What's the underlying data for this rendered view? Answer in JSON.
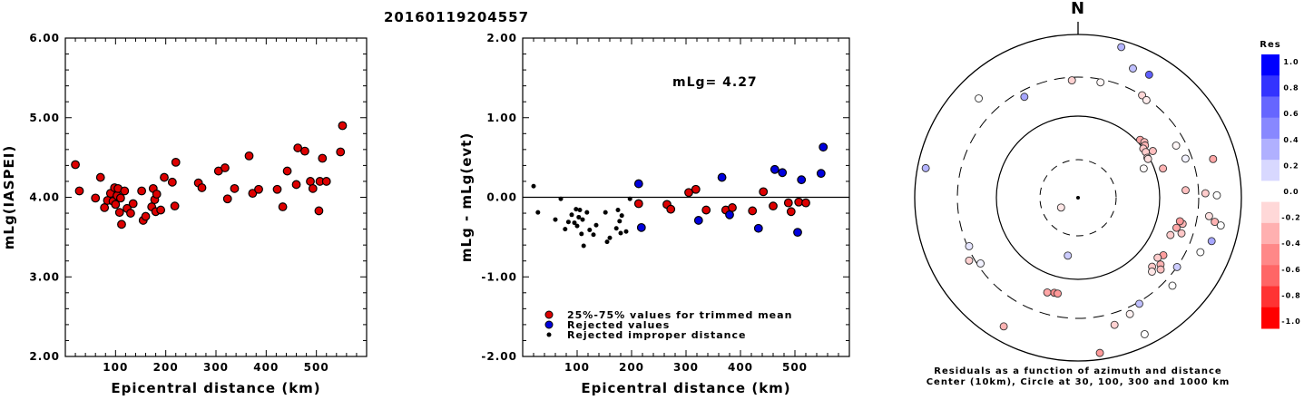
{
  "page_title": "20160119204557",
  "chart_data": [
    {
      "type": "scatter",
      "xlabel": "Epicentral distance (km)",
      "ylabel": "mLg(IASPEI)",
      "xlim": [
        0,
        600
      ],
      "ylim": [
        2.0,
        6.0
      ],
      "x_ticks": [
        "100",
        "200",
        "300",
        "400",
        "500"
      ],
      "y_ticks": [
        "2.00",
        "3.00",
        "4.00",
        "5.00",
        "6.00"
      ],
      "series": [
        {
          "color": "#dd0000",
          "points": [
            [
              20,
              4.41
            ],
            [
              28,
              4.08
            ],
            [
              60,
              3.99
            ],
            [
              70,
              4.25
            ],
            [
              78,
              3.87
            ],
            [
              84,
              3.96
            ],
            [
              90,
              4.05
            ],
            [
              95,
              3.95
            ],
            [
              98,
              4.12
            ],
            [
              100,
              3.91
            ],
            [
              103,
              4.02
            ],
            [
              105,
              4.11
            ],
            [
              108,
              3.81
            ],
            [
              110,
              3.99
            ],
            [
              112,
              3.66
            ],
            [
              118,
              4.08
            ],
            [
              123,
              3.86
            ],
            [
              130,
              3.8
            ],
            [
              135,
              3.92
            ],
            [
              152,
              4.08
            ],
            [
              155,
              3.71
            ],
            [
              160,
              3.76
            ],
            [
              172,
              3.88
            ],
            [
              175,
              4.11
            ],
            [
              178,
              3.97
            ],
            [
              180,
              3.82
            ],
            [
              182,
              4.04
            ],
            [
              190,
              3.84
            ],
            [
              197,
              4.25
            ],
            [
              213,
              4.19
            ],
            [
              218,
              3.89
            ],
            [
              220,
              4.44
            ],
            [
              265,
              4.18
            ],
            [
              272,
              4.12
            ],
            [
              305,
              4.33
            ],
            [
              318,
              4.37
            ],
            [
              323,
              3.98
            ],
            [
              337,
              4.11
            ],
            [
              366,
              4.52
            ],
            [
              373,
              4.05
            ],
            [
              385,
              4.1
            ],
            [
              422,
              4.1
            ],
            [
              433,
              3.88
            ],
            [
              442,
              4.33
            ],
            [
              460,
              4.16
            ],
            [
              463,
              4.62
            ],
            [
              477,
              4.58
            ],
            [
              488,
              4.2
            ],
            [
              493,
              4.11
            ],
            [
              505,
              3.83
            ],
            [
              507,
              4.2
            ],
            [
              512,
              4.49
            ],
            [
              520,
              4.2
            ],
            [
              548,
              4.57
            ],
            [
              552,
              4.9
            ]
          ]
        }
      ]
    },
    {
      "type": "scatter",
      "xlabel": "Epicentral distance (km)",
      "ylabel": "mLg - mLg(evt)",
      "xlim": [
        0,
        600
      ],
      "ylim": [
        -2.0,
        2.0
      ],
      "x_ticks": [
        "100",
        "200",
        "300",
        "400",
        "500"
      ],
      "y_ticks": [
        "-2.00",
        "-1.00",
        "0.00",
        "1.00",
        "2.00"
      ],
      "reference_line": 0.0,
      "annotation": "mLg= 4.27",
      "legend_position": "bottom-left",
      "series": [
        {
          "name": "25%-75% values for trimmed mean",
          "color": "#dd0000",
          "marker": "circle",
          "points": [
            [
              213,
              -0.08
            ],
            [
              265,
              -0.09
            ],
            [
              272,
              -0.15
            ],
            [
              305,
              0.06
            ],
            [
              318,
              0.1
            ],
            [
              337,
              -0.16
            ],
            [
              373,
              -0.16
            ],
            [
              385,
              -0.13
            ],
            [
              422,
              -0.17
            ],
            [
              442,
              0.07
            ],
            [
              460,
              -0.11
            ],
            [
              488,
              -0.07
            ],
            [
              493,
              -0.18
            ],
            [
              507,
              -0.06
            ],
            [
              520,
              -0.07
            ]
          ]
        },
        {
          "name": "Rejected values",
          "color": "#0000dd",
          "marker": "circle",
          "points": [
            [
              213,
              0.17
            ],
            [
              218,
              -0.38
            ],
            [
              323,
              -0.29
            ],
            [
              366,
              0.25
            ],
            [
              380,
              -0.22
            ],
            [
              433,
              -0.39
            ],
            [
              463,
              0.35
            ],
            [
              477,
              0.31
            ],
            [
              505,
              -0.44
            ],
            [
              512,
              0.22
            ],
            [
              548,
              0.3
            ],
            [
              552,
              0.63
            ]
          ]
        },
        {
          "name": "Rejected improper distance",
          "color": "#000000",
          "marker": "dot",
          "points": [
            [
              20,
              0.14
            ],
            [
              28,
              -0.19
            ],
            [
              60,
              -0.28
            ],
            [
              70,
              -0.02
            ],
            [
              78,
              -0.4
            ],
            [
              84,
              -0.31
            ],
            [
              90,
              -0.22
            ],
            [
              95,
              -0.32
            ],
            [
              98,
              -0.15
            ],
            [
              100,
              -0.36
            ],
            [
              103,
              -0.25
            ],
            [
              105,
              -0.16
            ],
            [
              108,
              -0.46
            ],
            [
              110,
              -0.28
            ],
            [
              112,
              -0.61
            ],
            [
              118,
              -0.19
            ],
            [
              123,
              -0.41
            ],
            [
              130,
              -0.47
            ],
            [
              135,
              -0.35
            ],
            [
              152,
              -0.19
            ],
            [
              155,
              -0.56
            ],
            [
              160,
              -0.51
            ],
            [
              172,
              -0.39
            ],
            [
              175,
              -0.16
            ],
            [
              178,
              -0.3
            ],
            [
              180,
              -0.45
            ],
            [
              182,
              -0.23
            ],
            [
              190,
              -0.43
            ],
            [
              197,
              -0.02
            ]
          ]
        }
      ]
    },
    {
      "type": "polar-scatter",
      "north_label": "N",
      "caption_line1": "Residuals as a function of azimuth and distance",
      "caption_line2": "Center (10km), Circle at 30, 100, 300 and 1000 km",
      "rings_km": [
        30,
        100,
        300,
        1000
      ],
      "colorbar": {
        "title": "Res",
        "ticks": [
          "1.0",
          "0.8",
          "0.6",
          "0.4",
          "0.2",
          "0.0",
          "-0.2",
          "-0.4",
          "-0.6",
          "-0.8",
          "-1.0"
        ],
        "colors": [
          "#0000ff",
          "#3333ff",
          "#6666ff",
          "#8888ff",
          "#b0b0ff",
          "#d8d8ff",
          "#ffffff",
          "#ffd8d8",
          "#ffb0b0",
          "#ff8888",
          "#ff6666",
          "#ff3333",
          "#ff0000"
        ]
      },
      "points": [
        {
          "az": 332,
          "r": 0.7,
          "res": 0.35
        },
        {
          "az": 16,
          "r": 0.96,
          "res": 0.3
        },
        {
          "az": 23,
          "r": 0.86,
          "res": 0.25
        },
        {
          "az": 30,
          "r": 0.87,
          "res": 0.63
        },
        {
          "az": 11,
          "r": 0.72,
          "res": -0.03
        },
        {
          "az": 357,
          "r": 0.72,
          "res": -0.18
        },
        {
          "az": 32,
          "r": 0.74,
          "res": -0.16
        },
        {
          "az": 35,
          "r": 0.73,
          "res": -0.07
        },
        {
          "az": -45,
          "r": 0.86,
          "res": 0.0
        },
        {
          "az": -79,
          "r": 0.95,
          "res": 0.3
        },
        {
          "az": -170,
          "r": 0.36,
          "res": 0.2
        },
        {
          "az": -120,
          "r": 0.12,
          "res": -0.1
        },
        {
          "az": 47,
          "r": 0.52,
          "res": -0.35
        },
        {
          "az": 50,
          "r": 0.53,
          "res": -0.28
        },
        {
          "az": 52,
          "r": 0.52,
          "res": -0.3
        },
        {
          "az": 53,
          "r": 0.5,
          "res": -0.22
        },
        {
          "az": 56,
          "r": 0.5,
          "res": -0.2
        },
        {
          "az": 58,
          "r": 0.54,
          "res": -0.25
        },
        {
          "az": 60,
          "r": 0.49,
          "res": -0.18
        },
        {
          "az": 61,
          "r": 0.49,
          "res": -0.12
        },
        {
          "az": 66,
          "r": 0.44,
          "res": -0.02
        },
        {
          "az": 62,
          "r": 0.68,
          "res": -0.03
        },
        {
          "az": 71,
          "r": 0.55,
          "res": -0.3
        },
        {
          "az": 70,
          "r": 0.7,
          "res": 0.05
        },
        {
          "az": 74,
          "r": 0.86,
          "res": -0.35
        },
        {
          "az": 86,
          "r": 0.66,
          "res": -0.25
        },
        {
          "az": 88,
          "r": 0.78,
          "res": -0.2
        },
        {
          "az": 89,
          "r": 0.85,
          "res": 0.0
        },
        {
          "az": 98,
          "r": 0.81,
          "res": -0.12
        },
        {
          "az": 100,
          "r": 0.85,
          "res": -0.3
        },
        {
          "az": 101,
          "r": 0.89,
          "res": 0.0
        },
        {
          "az": 104,
          "r": 0.66,
          "res": -0.28
        },
        {
          "az": 103,
          "r": 0.64,
          "res": -0.4
        },
        {
          "az": 107,
          "r": 0.63,
          "res": -0.35
        },
        {
          "az": 109,
          "r": 0.67,
          "res": -0.22
        },
        {
          "az": 112,
          "r": 0.61,
          "res": -0.2
        },
        {
          "az": 108,
          "r": 0.86,
          "res": 0.35
        },
        {
          "az": 114,
          "r": 0.82,
          "res": 0.0
        },
        {
          "az": 124,
          "r": 0.63,
          "res": -0.38
        },
        {
          "az": 127,
          "r": 0.61,
          "res": -0.2
        },
        {
          "az": 129,
          "r": 0.65,
          "res": -0.3
        },
        {
          "az": 131,
          "r": 0.67,
          "res": -0.25
        },
        {
          "az": 133,
          "r": 0.62,
          "res": -0.22
        },
        {
          "az": 135,
          "r": 0.64,
          "res": -0.1
        },
        {
          "az": 125,
          "r": 0.74,
          "res": 0.2
        },
        {
          "az": 133,
          "r": 0.79,
          "res": 0.0
        },
        {
          "az": 150,
          "r": 0.75,
          "res": 0.25
        },
        {
          "az": 156,
          "r": 0.78,
          "res": -0.05
        },
        {
          "az": 154,
          "r": 0.93,
          "res": 0.0
        },
        {
          "az": 164,
          "r": 0.81,
          "res": -0.18
        },
        {
          "az": 172,
          "r": 0.96,
          "res": -0.4
        },
        {
          "az": 194,
          "r": 0.6,
          "res": -0.45
        },
        {
          "az": 192,
          "r": 0.6,
          "res": -0.4
        },
        {
          "az": 198,
          "r": 0.61,
          "res": -0.35
        },
        {
          "az": 210,
          "r": 0.91,
          "res": -0.3
        },
        {
          "az": 236,
          "r": 0.72,
          "res": 0.05
        },
        {
          "az": 240,
          "r": 0.77,
          "res": -0.18
        },
        {
          "az": 246,
          "r": 0.73,
          "res": 0.1
        }
      ]
    }
  ]
}
